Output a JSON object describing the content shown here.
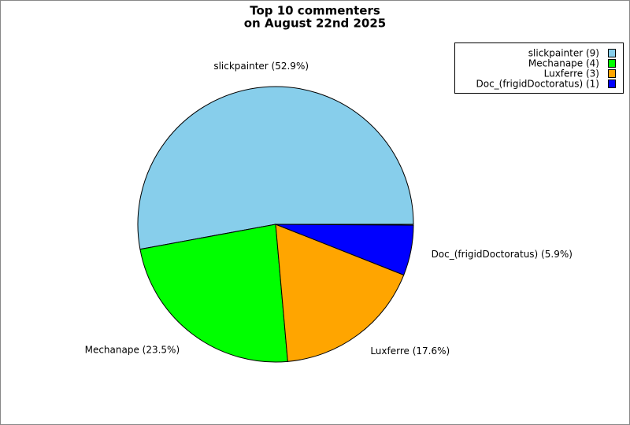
{
  "chart_data": {
    "type": "pie",
    "title": [
      "Top 10 commenters",
      "on August 22nd 2025"
    ],
    "legend_labels": [
      "slickpainter (9)",
      "Mechanape (4)",
      "Luxferre (3)",
      "Doc_(frigidDoctoratus) (1)"
    ],
    "values": [
      52.9,
      23.5,
      17.6,
      5.9
    ],
    "value_labels": [
      "slickpainter (52.9%)",
      "Mechanape (23.5%)",
      "Luxferre (17.6%)",
      "Doc_(frigidDoctoratus) (5.9%)"
    ],
    "colors": [
      "#87ceeb",
      "#00ff00",
      "#ffa500",
      "#0000ff"
    ],
    "legend": "upper right"
  }
}
